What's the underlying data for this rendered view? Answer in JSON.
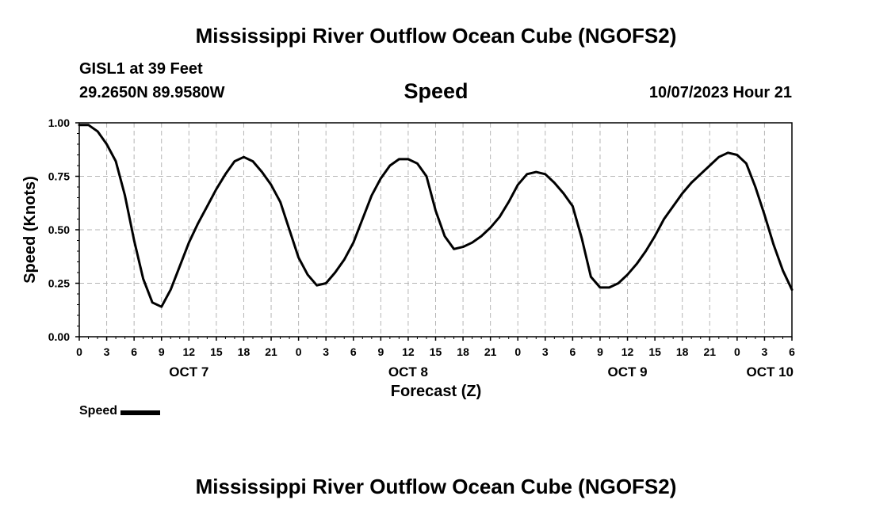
{
  "header": {
    "title": "Mississippi River Outflow Ocean Cube (NGOFS2)",
    "station": "GISL1 at 39 Feet",
    "coords": "29.2650N  89.9580W",
    "variable": "Speed",
    "datetime": "10/07/2023 Hour 21"
  },
  "footer": {
    "title": "Mississippi River Outflow Ocean Cube (NGOFS2)"
  },
  "legend": {
    "label": "Speed"
  },
  "chart_data": {
    "type": "line",
    "title": "Speed",
    "xlabel": "Forecast (Z)",
    "ylabel": "Speed (Knots)",
    "xlim": [
      0,
      78
    ],
    "ylim": [
      0,
      1
    ],
    "grid": true,
    "legend_position": "bottom-left",
    "y_ticks": [
      "0.00",
      "0.25",
      "0.50",
      "0.75",
      "1.00"
    ],
    "y_tick_values": [
      0,
      0.25,
      0.5,
      0.75,
      1.0
    ],
    "x_ticks": [
      "0",
      "3",
      "6",
      "9",
      "12",
      "15",
      "18",
      "21",
      "0",
      "3",
      "6",
      "9",
      "12",
      "15",
      "18",
      "21",
      "0",
      "3",
      "6",
      "9",
      "12",
      "15",
      "18",
      "21",
      "0",
      "3",
      "6"
    ],
    "date_labels": [
      {
        "label": "OCT 7",
        "hour": 12
      },
      {
        "label": "OCT 8",
        "hour": 36
      },
      {
        "label": "OCT 9",
        "hour": 60
      },
      {
        "label": "OCT 10",
        "hour": 78
      }
    ],
    "series": [
      {
        "name": "Speed",
        "color": "#000000",
        "x": [
          0,
          1,
          2,
          3,
          4,
          5,
          6,
          7,
          8,
          9,
          10,
          11,
          12,
          13,
          14,
          15,
          16,
          17,
          18,
          19,
          20,
          21,
          22,
          23,
          24,
          25,
          26,
          27,
          28,
          29,
          30,
          31,
          32,
          33,
          34,
          35,
          36,
          37,
          38,
          39,
          40,
          41,
          42,
          43,
          44,
          45,
          46,
          47,
          48,
          49,
          50,
          51,
          52,
          53,
          54,
          55,
          56,
          57,
          58,
          59,
          60,
          61,
          62,
          63,
          64,
          65,
          66,
          67,
          68,
          69,
          70,
          71,
          72,
          73,
          74,
          75,
          76,
          77,
          78
        ],
        "y": [
          0.99,
          0.99,
          0.96,
          0.9,
          0.82,
          0.66,
          0.45,
          0.27,
          0.16,
          0.14,
          0.22,
          0.33,
          0.44,
          0.53,
          0.61,
          0.69,
          0.76,
          0.82,
          0.84,
          0.82,
          0.77,
          0.71,
          0.63,
          0.5,
          0.37,
          0.29,
          0.24,
          0.25,
          0.3,
          0.36,
          0.44,
          0.55,
          0.66,
          0.74,
          0.8,
          0.83,
          0.83,
          0.81,
          0.75,
          0.59,
          0.47,
          0.41,
          0.42,
          0.44,
          0.47,
          0.51,
          0.56,
          0.63,
          0.71,
          0.76,
          0.77,
          0.76,
          0.72,
          0.67,
          0.61,
          0.46,
          0.28,
          0.23,
          0.23,
          0.25,
          0.29,
          0.34,
          0.4,
          0.47,
          0.55,
          0.61,
          0.67,
          0.72,
          0.76,
          0.8,
          0.84,
          0.86,
          0.85,
          0.81,
          0.7,
          0.57,
          0.43,
          0.31,
          0.22
        ]
      }
    ]
  }
}
